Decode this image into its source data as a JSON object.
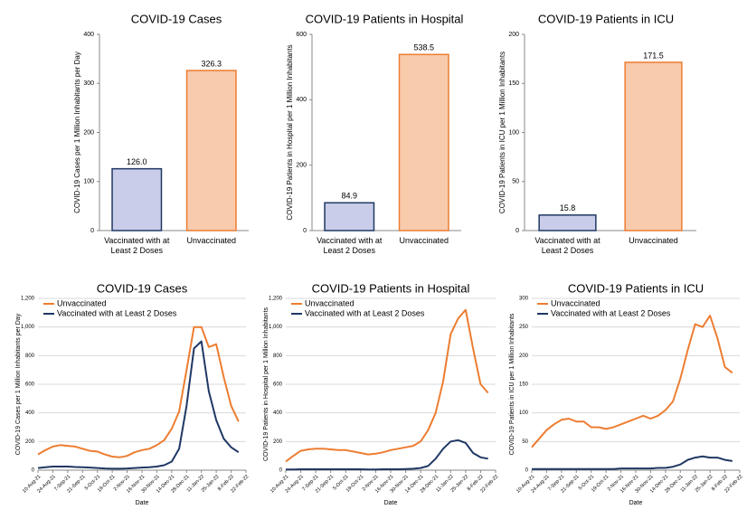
{
  "chart_data": [
    {
      "type": "bar",
      "title": "COVID-19 Cases",
      "ylabel": "COVID-19 Cases per 1 Million Inhabitants per Day",
      "categories": [
        "Vaccinated with at Least 2 Doses",
        "Unvaccinated"
      ],
      "values": [
        126.0,
        326.3
      ],
      "value_labels": [
        "126.0",
        "326.3"
      ],
      "colors": [
        "#c9cde9",
        "#f8cbad"
      ],
      "edge_colors": [
        "#1f3864",
        "#ed7d31"
      ],
      "ylim": [
        0,
        400
      ],
      "yticks": [
        0,
        100,
        200,
        300,
        400
      ]
    },
    {
      "type": "bar",
      "title": "COVID-19 Patients in Hospital",
      "ylabel": "COVID-19 Patients in Hospital per 1 Million Inhabitants",
      "categories": [
        "Vaccinated with at Least 2 Doses",
        "Unvaccinated"
      ],
      "values": [
        84.9,
        538.5
      ],
      "value_labels": [
        "84.9",
        "538.5"
      ],
      "colors": [
        "#c9cde9",
        "#f8cbad"
      ],
      "edge_colors": [
        "#1f3864",
        "#ed7d31"
      ],
      "ylim": [
        0,
        600
      ],
      "yticks": [
        0,
        200,
        400,
        600
      ]
    },
    {
      "type": "bar",
      "title": "COVID-19 Patients in ICU",
      "ylabel": "COVID-19 Patients in ICU  per 1 Million Inhabitants",
      "categories": [
        "Vaccinated with at Least 2 Doses",
        "Unvaccinated"
      ],
      "values": [
        15.8,
        171.5
      ],
      "value_labels": [
        "15.8",
        "171.5"
      ],
      "colors": [
        "#c9cde9",
        "#f8cbad"
      ],
      "edge_colors": [
        "#1f3864",
        "#ed7d31"
      ],
      "ylim": [
        0,
        200
      ],
      "yticks": [
        0,
        50,
        100,
        150,
        200
      ]
    },
    {
      "type": "line",
      "title": "COVID-19 Cases",
      "xlabel": "Date",
      "ylabel": "COVID-19 Cases per 1 Million Inhabitants per Day",
      "grid": true,
      "legend": "upper left",
      "x": [
        "10-Aug-21",
        "17-Aug-21",
        "24-Aug-21",
        "31-Aug-21",
        "7-Sep-21",
        "14-Sep-21",
        "21-Sep-21",
        "28-Sep-21",
        "5-Oct-21",
        "12-Oct-21",
        "19-Oct-21",
        "26-Oct-21",
        "2-Nov-21",
        "9-Nov-21",
        "16-Nov-21",
        "23-Nov-21",
        "30-Nov-21",
        "7-Dec-21",
        "14-Dec-21",
        "21-Dec-21",
        "28-Dec-21",
        "4-Jan-22",
        "11-Jan-22",
        "18-Jan-22",
        "25-Jan-22",
        "1-Feb-22",
        "8-Feb-22",
        "15-Feb-22"
      ],
      "xlim": [
        "10-Aug-21",
        "22-Feb-22"
      ],
      "xticks": [
        "10-Aug-21",
        "24-Aug-21",
        "7-Sep-21",
        "21-Sep-21",
        "5-Oct-21",
        "19-Oct-21",
        "2-Nov-21",
        "16-Nov-21",
        "30-Nov-21",
        "14-Dec-21",
        "28-Dec-21",
        "11-Jan-22",
        "25-Jan-22",
        "8-Feb-22",
        "22-Feb-22"
      ],
      "ylim": [
        0,
        1200
      ],
      "yticks": [
        0,
        200,
        400,
        600,
        800,
        {
          "value": 1000,
          "label": "1,000"
        },
        {
          "value": 1200,
          "label": "1,200"
        }
      ],
      "series": [
        {
          "name": "Unvaccinated",
          "color": "#ed7d31",
          "values": [
            110,
            140,
            165,
            175,
            170,
            165,
            150,
            135,
            130,
            110,
            95,
            90,
            100,
            125,
            140,
            150,
            175,
            210,
            290,
            410,
            700,
            1000,
            1000,
            860,
            880,
            650,
            450,
            340
          ]
        },
        {
          "name": "Vaccinated with at Least 2 Doses",
          "color": "#1f3864",
          "values": [
            15,
            20,
            25,
            25,
            25,
            22,
            20,
            18,
            15,
            12,
            10,
            10,
            12,
            15,
            18,
            20,
            25,
            35,
            60,
            150,
            450,
            850,
            900,
            550,
            350,
            220,
            160,
            125
          ]
        }
      ]
    },
    {
      "type": "line",
      "title": "COVID-19 Patients in Hospital",
      "xlabel": "Date",
      "ylabel": "COVID-19 Patients in Hospital per 1 Million Inhabitants",
      "grid": true,
      "legend": "upper left",
      "x": [
        "10-Aug-21",
        "17-Aug-21",
        "24-Aug-21",
        "31-Aug-21",
        "7-Sep-21",
        "14-Sep-21",
        "21-Sep-21",
        "28-Sep-21",
        "5-Oct-21",
        "12-Oct-21",
        "19-Oct-21",
        "26-Oct-21",
        "2-Nov-21",
        "9-Nov-21",
        "16-Nov-21",
        "23-Nov-21",
        "30-Nov-21",
        "7-Dec-21",
        "14-Dec-21",
        "21-Dec-21",
        "28-Dec-21",
        "4-Jan-22",
        "11-Jan-22",
        "18-Jan-22",
        "25-Jan-22",
        "1-Feb-22",
        "8-Feb-22",
        "15-Feb-22"
      ],
      "xlim": [
        "10-Aug-21",
        "22-Feb-22"
      ],
      "xticks": [
        "10-Aug-21",
        "24-Aug-21",
        "7-Sep-21",
        "21-Sep-21",
        "5-Oct-21",
        "19-Oct-21",
        "2-Nov-21",
        "16-Nov-21",
        "30-Nov-21",
        "14-Dec-21",
        "28-Dec-21",
        "11-Jan-22",
        "25-Jan-22",
        "8-Feb-22",
        "22-Feb-22"
      ],
      "ylim": [
        0,
        1200
      ],
      "yticks": [
        0,
        200,
        400,
        600,
        800,
        {
          "value": 1000,
          "label": "1,000"
        },
        {
          "value": 1200,
          "label": "1,200"
        }
      ],
      "series": [
        {
          "name": "Unvaccinated",
          "color": "#ed7d31",
          "values": [
            60,
            100,
            135,
            145,
            150,
            150,
            145,
            140,
            140,
            130,
            120,
            110,
            115,
            125,
            140,
            150,
            160,
            170,
            200,
            280,
            400,
            620,
            950,
            1060,
            1120,
            850,
            600,
            540
          ]
        },
        {
          "name": "Vaccinated with at Least 2 Doses",
          "color": "#1f3864",
          "values": [
            5,
            5,
            6,
            6,
            6,
            6,
            6,
            6,
            6,
            6,
            6,
            5,
            5,
            6,
            6,
            6,
            8,
            10,
            15,
            30,
            80,
            150,
            200,
            210,
            190,
            120,
            90,
            80
          ]
        }
      ]
    },
    {
      "type": "line",
      "title": "COVID-19 Patients in ICU",
      "xlabel": "Date",
      "ylabel": "COVID-19 Patients in ICU  per 1 Million Inhabitants",
      "grid": true,
      "legend": "upper left",
      "x": [
        "10-Aug-21",
        "17-Aug-21",
        "24-Aug-21",
        "31-Aug-21",
        "7-Sep-21",
        "14-Sep-21",
        "21-Sep-21",
        "28-Sep-21",
        "5-Oct-21",
        "12-Oct-21",
        "19-Oct-21",
        "26-Oct-21",
        "2-Nov-21",
        "9-Nov-21",
        "16-Nov-21",
        "23-Nov-21",
        "30-Nov-21",
        "7-Dec-21",
        "14-Dec-21",
        "21-Dec-21",
        "28-Dec-21",
        "4-Jan-22",
        "11-Jan-22",
        "18-Jan-22",
        "25-Jan-22",
        "1-Feb-22",
        "8-Feb-22",
        "15-Feb-22"
      ],
      "xlim": [
        "10-Aug-21",
        "22-Feb-22"
      ],
      "xticks": [
        "10-Aug-21",
        "24-Aug-21",
        "7-Sep-21",
        "21-Sep-21",
        "5-Oct-21",
        "19-Oct-21",
        "2-Nov-21",
        "16-Nov-21",
        "30-Nov-21",
        "14-Dec-21",
        "28-Dec-21",
        "11-Jan-22",
        "25-Jan-22",
        "8-Feb-22",
        "22-Feb-22"
      ],
      "ylim": [
        0,
        300
      ],
      "yticks": [
        0,
        50,
        100,
        150,
        200,
        250,
        300
      ],
      "series": [
        {
          "name": "Unvaccinated",
          "color": "#ed7d31",
          "values": [
            40,
            55,
            70,
            80,
            88,
            90,
            85,
            85,
            75,
            75,
            72,
            75,
            80,
            85,
            90,
            95,
            90,
            95,
            105,
            120,
            160,
            210,
            255,
            250,
            270,
            230,
            180,
            170
          ]
        },
        {
          "name": "Vaccinated with at Least 2 Doses",
          "color": "#1f3864",
          "values": [
            2,
            2,
            2,
            2,
            2,
            2,
            2,
            2,
            2,
            2,
            2,
            2,
            3,
            3,
            3,
            3,
            3,
            4,
            4,
            6,
            10,
            18,
            22,
            24,
            22,
            22,
            18,
            16
          ]
        }
      ]
    }
  ]
}
